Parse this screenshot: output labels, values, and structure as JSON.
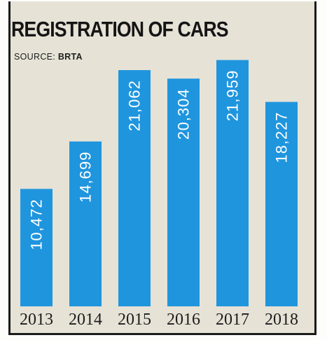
{
  "chart_data": {
    "type": "bar",
    "title": "REGISTRATION OF CARS",
    "source_label": "SOURCE:",
    "source_name": "BRTA",
    "categories": [
      "2013",
      "2014",
      "2015",
      "2016",
      "2017",
      "2018"
    ],
    "values": [
      10472,
      14699,
      21062,
      20304,
      21959,
      18227
    ],
    "value_labels": [
      "10,472",
      "14,699",
      "21,062",
      "20,304",
      "21,959",
      "18,227"
    ],
    "bar_color": "#1f95de",
    "xlabel": "",
    "ylabel": "",
    "grid": false
  }
}
